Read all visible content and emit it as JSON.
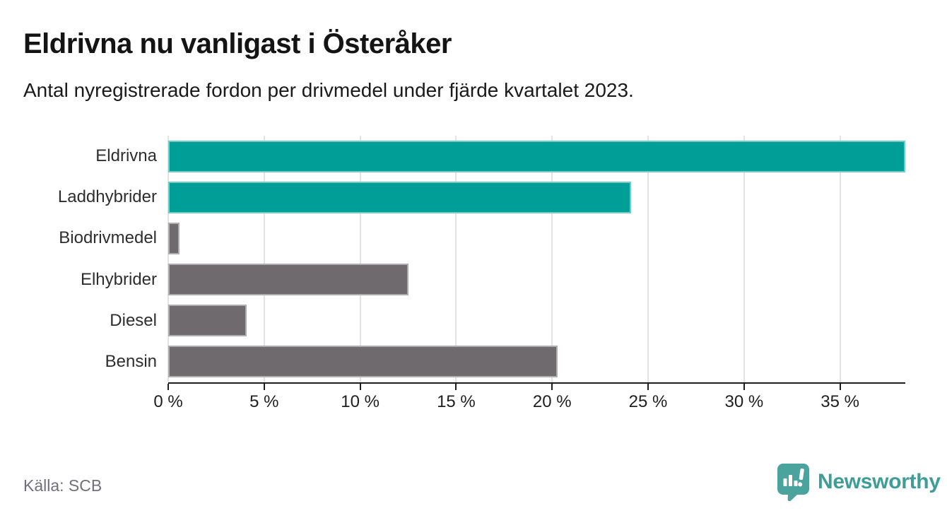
{
  "header": {
    "title": "Eldrivna nu vanligast i Österåker",
    "subtitle": "Antal nyregistrerade fordon per drivmedel under fjärde kvartalet 2023."
  },
  "chart_data": {
    "type": "bar",
    "orientation": "horizontal",
    "title": "Eldrivna nu vanligast i Österåker",
    "subtitle": "Antal nyregistrerade fordon per drivmedel under fjärde kvartalet 2023.",
    "categories": [
      "Eldrivna",
      "Laddhybrider",
      "Biodrivmedel",
      "Elhybrider",
      "Diesel",
      "Bensin"
    ],
    "values": [
      38.4,
      24.1,
      0.6,
      12.5,
      4.1,
      20.3
    ],
    "unit": "%",
    "xlim": [
      0,
      38.4
    ],
    "xticks": [
      0,
      5,
      10,
      15,
      20,
      25,
      30,
      35
    ],
    "xtick_labels": [
      "0 %",
      "5 %",
      "10 %",
      "15 %",
      "20 %",
      "25 %",
      "30 %",
      "35 %"
    ],
    "grid": true,
    "legend": "none",
    "bar_colors": [
      "#009E97",
      "#009E97",
      "#6E6A6E",
      "#6E6A6E",
      "#6E6A6E",
      "#6E6A6E"
    ],
    "colors": {
      "accent_teal": "#009E97",
      "bar_gray": "#6E6A6E",
      "gridline": "#E3E3E3",
      "axis": "#1F1F1F"
    }
  },
  "footer": {
    "source": "Källa: SCB",
    "brand": "Newsworthy",
    "brand_color": "#3F9D98"
  }
}
